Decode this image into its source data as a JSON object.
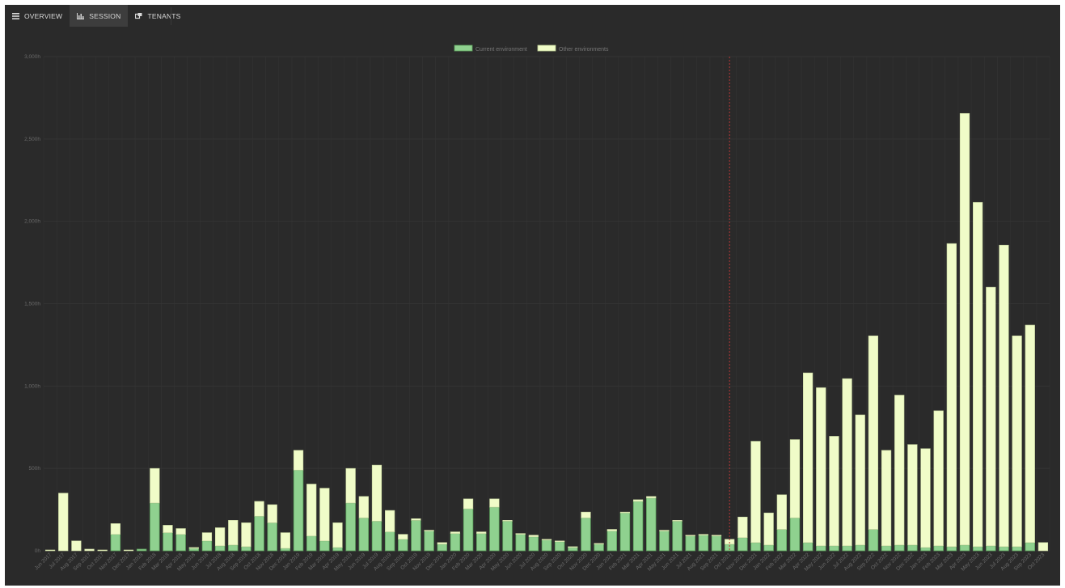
{
  "tabs": [
    {
      "label": "OVERVIEW",
      "icon": "list-icon",
      "active": false
    },
    {
      "label": "SESSION",
      "icon": "bar-chart-icon",
      "active": true
    },
    {
      "label": "TENANTS",
      "icon": "tenants-icon",
      "active": false
    }
  ],
  "colors": {
    "current": "#8fd18f",
    "current_border": "#5da05d",
    "other": "#f0fcc8",
    "marker": "#b83838",
    "grid": "#343434"
  },
  "chart_data": {
    "type": "bar",
    "stacked": true,
    "legend_position": "top-center",
    "grid": true,
    "ylim": [
      0,
      3000
    ],
    "yticks": [
      "0h",
      "500h",
      "1,000h",
      "1,500h",
      "2,000h",
      "2,500h",
      "3,000h"
    ],
    "marker_category": "Oct 2021",
    "categories": [
      "Jun 2017",
      "Jul 2017",
      "Aug 2017",
      "Sep 2017",
      "Oct 2017",
      "Nov 2017",
      "Dec 2017",
      "Jan 2018",
      "Feb 2018",
      "Mar 2018",
      "Apr 2018",
      "May 2018",
      "Jun 2018",
      "Jul 2018",
      "Aug 2018",
      "Sep 2018",
      "Oct 2018",
      "Nov 2018",
      "Dec 2018",
      "Jan 2019",
      "Feb 2019",
      "Mar 2019",
      "Apr 2019",
      "May 2019",
      "Jun 2019",
      "Jul 2019",
      "Aug 2019",
      "Sep 2019",
      "Oct 2019",
      "Nov 2019",
      "Dec 2019",
      "Jan 2020",
      "Feb 2020",
      "Mar 2020",
      "Apr 2020",
      "May 2020",
      "Jun 2020",
      "Jul 2020",
      "Aug 2020",
      "Sep 2020",
      "Oct 2020",
      "Nov 2020",
      "Dec 2020",
      "Jan 2021",
      "Feb 2021",
      "Mar 2021",
      "Apr 2021",
      "May 2021",
      "Jun 2021",
      "Jul 2021",
      "Aug 2021",
      "Sep 2021",
      "Oct 2021",
      "Nov 2021",
      "Dec 2021",
      "Jan 2022",
      "Feb 2022",
      "Mar 2022",
      "Apr 2022",
      "May 2022",
      "Jun 2022",
      "Jul 2022",
      "Aug 2022",
      "Sep 2022",
      "Oct 2022",
      "Nov 2022",
      "Dec 2022",
      "Jan 2023",
      "Feb 2023",
      "Mar 2023",
      "Apr 2023",
      "May 2023",
      "Jun 2023",
      "Jul 2023",
      "Aug 2023",
      "Sep 2023",
      "Oct 2023"
    ],
    "series": [
      {
        "name": "Current environment",
        "values": [
          0,
          0,
          0,
          0,
          0,
          100,
          0,
          10,
          290,
          110,
          100,
          15,
          60,
          30,
          35,
          25,
          210,
          170,
          15,
          490,
          90,
          60,
          20,
          290,
          200,
          180,
          115,
          70,
          185,
          120,
          40,
          105,
          255,
          105,
          265,
          180,
          100,
          85,
          65,
          55,
          20,
          200,
          40,
          120,
          230,
          300,
          320,
          120,
          180,
          90,
          95,
          90,
          40,
          80,
          50,
          35,
          130,
          200,
          50,
          30,
          30,
          30,
          35,
          130,
          30,
          35,
          35,
          20,
          30,
          25,
          35,
          25,
          30,
          25,
          25,
          50,
          0
        ]
      },
      {
        "name": "Other environments",
        "values": [
          5,
          350,
          60,
          10,
          5,
          65,
          5,
          0,
          210,
          45,
          35,
          5,
          50,
          110,
          150,
          145,
          90,
          110,
          95,
          120,
          315,
          320,
          150,
          210,
          130,
          340,
          130,
          30,
          10,
          5,
          10,
          10,
          60,
          10,
          50,
          5,
          5,
          10,
          5,
          5,
          5,
          35,
          5,
          10,
          5,
          10,
          10,
          5,
          5,
          5,
          5,
          5,
          30,
          125,
          615,
          195,
          210,
          475,
          1030,
          960,
          665,
          1015,
          790,
          1175,
          580,
          910,
          610,
          600,
          820,
          1840,
          2620,
          2090,
          1570,
          1830,
          1280,
          1320,
          50
        ]
      }
    ]
  }
}
